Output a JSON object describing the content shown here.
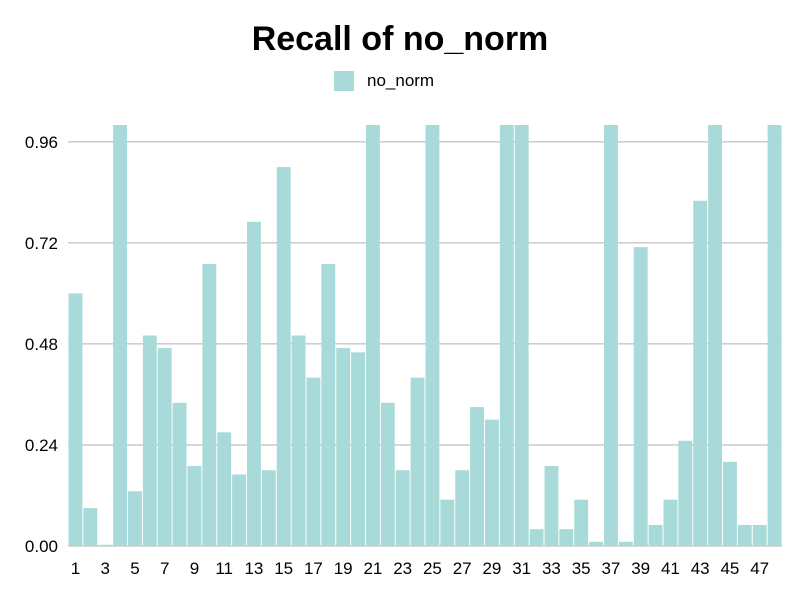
{
  "chart_data": {
    "type": "bar",
    "title": "Recall of no_norm",
    "xlabel": "",
    "ylabel": "",
    "ylim": [
      0,
      1.0
    ],
    "yticks": [
      "0.00",
      "0.24",
      "0.48",
      "0.72",
      "0.96"
    ],
    "ytick_values": [
      0,
      0.24,
      0.48,
      0.72,
      0.96
    ],
    "xtick_labels": [
      "1",
      "3",
      "5",
      "7",
      "9",
      "11",
      "13",
      "15",
      "17",
      "19",
      "21",
      "23",
      "25",
      "27",
      "29",
      "31",
      "33",
      "35",
      "37",
      "39",
      "41",
      "43",
      "45",
      "47"
    ],
    "grid": true,
    "legend_position": "top-center",
    "categories": [
      "1",
      "2",
      "3",
      "4",
      "5",
      "6",
      "7",
      "8",
      "9",
      "10",
      "11",
      "12",
      "13",
      "14",
      "15",
      "16",
      "17",
      "18",
      "19",
      "20",
      "21",
      "22",
      "23",
      "24",
      "25",
      "26",
      "27",
      "28",
      "29",
      "30",
      "31",
      "32",
      "33",
      "34",
      "35",
      "36",
      "37",
      "38",
      "39",
      "40",
      "41",
      "42",
      "43",
      "44",
      "45",
      "46",
      "47",
      "48"
    ],
    "series": [
      {
        "name": "no_norm",
        "color": "#a8dada",
        "values": [
          0.6,
          0.09,
          0.003,
          1.0,
          0.13,
          0.5,
          0.47,
          0.34,
          0.19,
          0.67,
          0.27,
          0.17,
          0.77,
          0.18,
          0.9,
          0.5,
          0.4,
          0.67,
          0.47,
          0.46,
          1.0,
          0.34,
          0.18,
          0.4,
          1.0,
          0.11,
          0.18,
          0.33,
          0.3,
          1.0,
          1.0,
          0.04,
          0.19,
          0.04,
          0.11,
          0.01,
          1.0,
          0.01,
          0.71,
          0.05,
          0.11,
          0.25,
          0.82,
          1.0,
          0.2,
          0.05,
          0.05,
          1.0
        ]
      }
    ]
  }
}
